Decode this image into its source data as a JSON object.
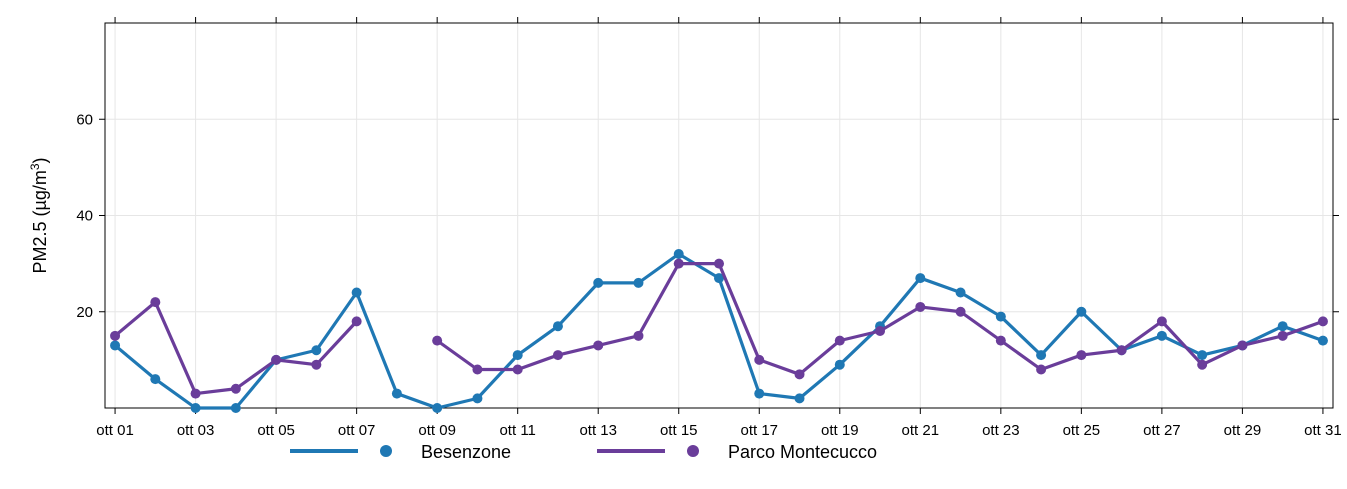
{
  "chart_data": {
    "type": "line",
    "ylabel": "PM2.5 (µg/m³)",
    "ylabel_parts": {
      "main": "PM2.5 (µg/m",
      "sup": "3",
      "close": ")"
    },
    "ylim": [
      0,
      80
    ],
    "xlim": [
      0.75,
      31.25
    ],
    "yticks": [
      20,
      40,
      60
    ],
    "grid": true,
    "legend_position": "bottom",
    "x": [
      1,
      2,
      3,
      4,
      5,
      6,
      7,
      8,
      9,
      10,
      11,
      12,
      13,
      14,
      15,
      16,
      17,
      18,
      19,
      20,
      21,
      22,
      23,
      24,
      25,
      26,
      27,
      28,
      29,
      30,
      31
    ],
    "xticks": [
      {
        "day": 1,
        "label": "ott 01"
      },
      {
        "day": 3,
        "label": "ott 03"
      },
      {
        "day": 5,
        "label": "ott 05"
      },
      {
        "day": 7,
        "label": "ott 07"
      },
      {
        "day": 9,
        "label": "ott 09"
      },
      {
        "day": 11,
        "label": "ott 11"
      },
      {
        "day": 13,
        "label": "ott 13"
      },
      {
        "day": 15,
        "label": "ott 15"
      },
      {
        "day": 17,
        "label": "ott 17"
      },
      {
        "day": 19,
        "label": "ott 19"
      },
      {
        "day": 21,
        "label": "ott 21"
      },
      {
        "day": 23,
        "label": "ott 23"
      },
      {
        "day": 25,
        "label": "ott 25"
      },
      {
        "day": 27,
        "label": "ott 27"
      },
      {
        "day": 29,
        "label": "ott 29"
      },
      {
        "day": 31,
        "label": "ott 31"
      }
    ],
    "series": [
      {
        "name": "Besenzone",
        "color": "#1F78B4",
        "values": [
          13,
          6,
          0,
          0,
          10,
          12,
          24,
          3,
          0,
          2,
          11,
          17,
          26,
          26,
          32,
          27,
          3,
          2,
          9,
          17,
          27,
          24,
          19,
          11,
          20,
          12,
          15,
          11,
          13,
          17,
          14
        ]
      },
      {
        "name": "Parco Montecucco",
        "color": "#6A3D9A",
        "values": [
          15,
          22,
          3,
          4,
          10,
          9,
          18,
          null,
          14,
          8,
          8,
          11,
          13,
          15,
          30,
          30,
          10,
          7,
          14,
          16,
          21,
          20,
          14,
          8,
          11,
          12,
          18,
          9,
          13,
          15,
          18
        ]
      }
    ]
  }
}
